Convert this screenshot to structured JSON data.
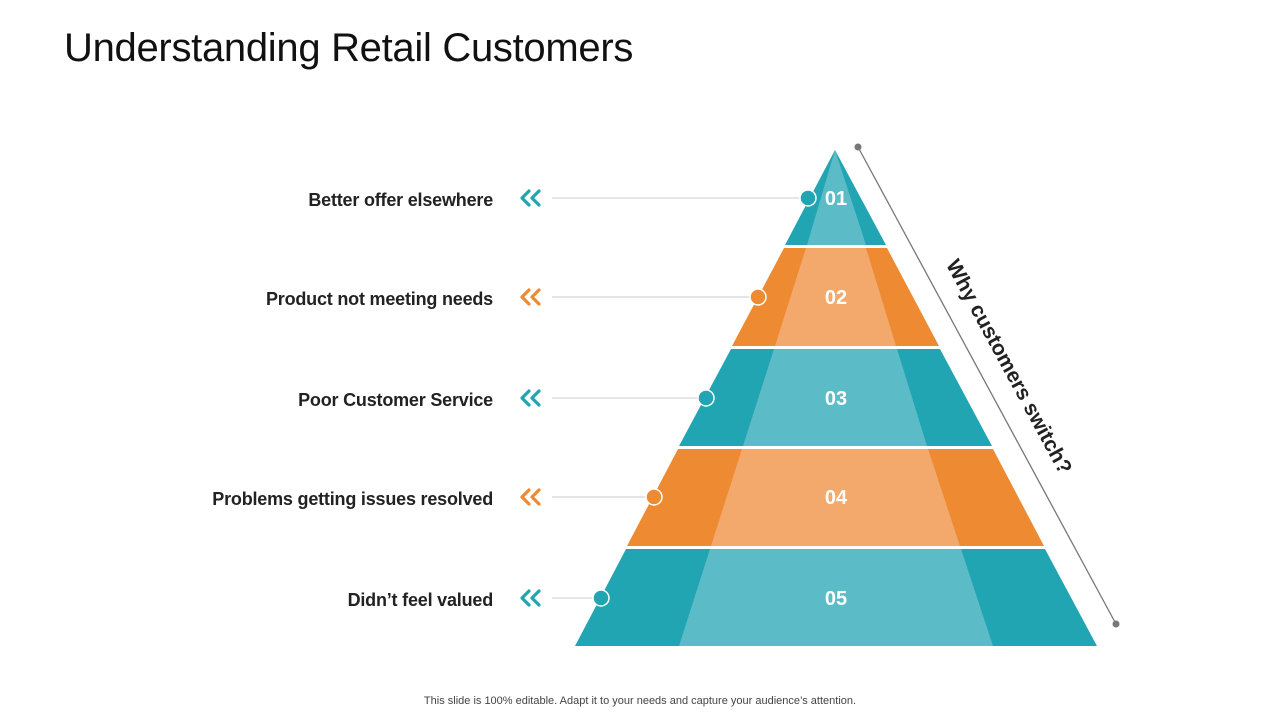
{
  "slide": {
    "title": "Understanding Retail Customers",
    "side_label": "Why customers switch?",
    "footer": "This slide is 100% editable. Adapt it to your needs and capture your audience’s attention."
  },
  "colors": {
    "teal": "#22A5B2",
    "teal_light": "#5BBCC7",
    "orange": "#EE8A32",
    "orange_light": "#F3A96C",
    "connector_line": "#CCCCCC",
    "side_line": "#777777"
  },
  "levels": [
    {
      "number": "01",
      "label": "Better offer elsewhere",
      "color": "teal"
    },
    {
      "number": "02",
      "label": "Product not meeting needs",
      "color": "orange"
    },
    {
      "number": "03",
      "label": "Poor Customer Service",
      "color": "teal"
    },
    {
      "number": "04",
      "label": "Problems getting issues resolved",
      "color": "orange"
    },
    {
      "number": "05",
      "label": "Didn’t feel valued",
      "color": "teal"
    }
  ],
  "icons": {
    "level_arrow": "double-chevron-left-icon",
    "level_marker": "circle-marker-icon",
    "side_line_endpoint": "dot-icon"
  }
}
